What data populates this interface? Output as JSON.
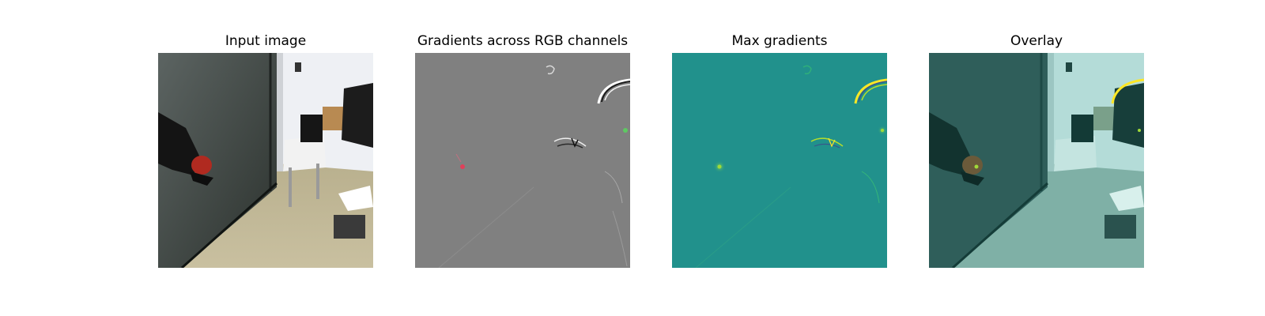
{
  "figure": {
    "panels": [
      {
        "title": "Input image"
      },
      {
        "title": "Gradients across RGB channels"
      },
      {
        "title": "Max gradients"
      },
      {
        "title": "Overlay"
      }
    ]
  },
  "colors": {
    "background": "#ffffff",
    "gradient_gray": "#808080",
    "max_gradient_teal": "#21918c",
    "highlight_yellow": "#fde725",
    "highlight_green": "#5ec962",
    "highlight_red": "#e0405a"
  }
}
